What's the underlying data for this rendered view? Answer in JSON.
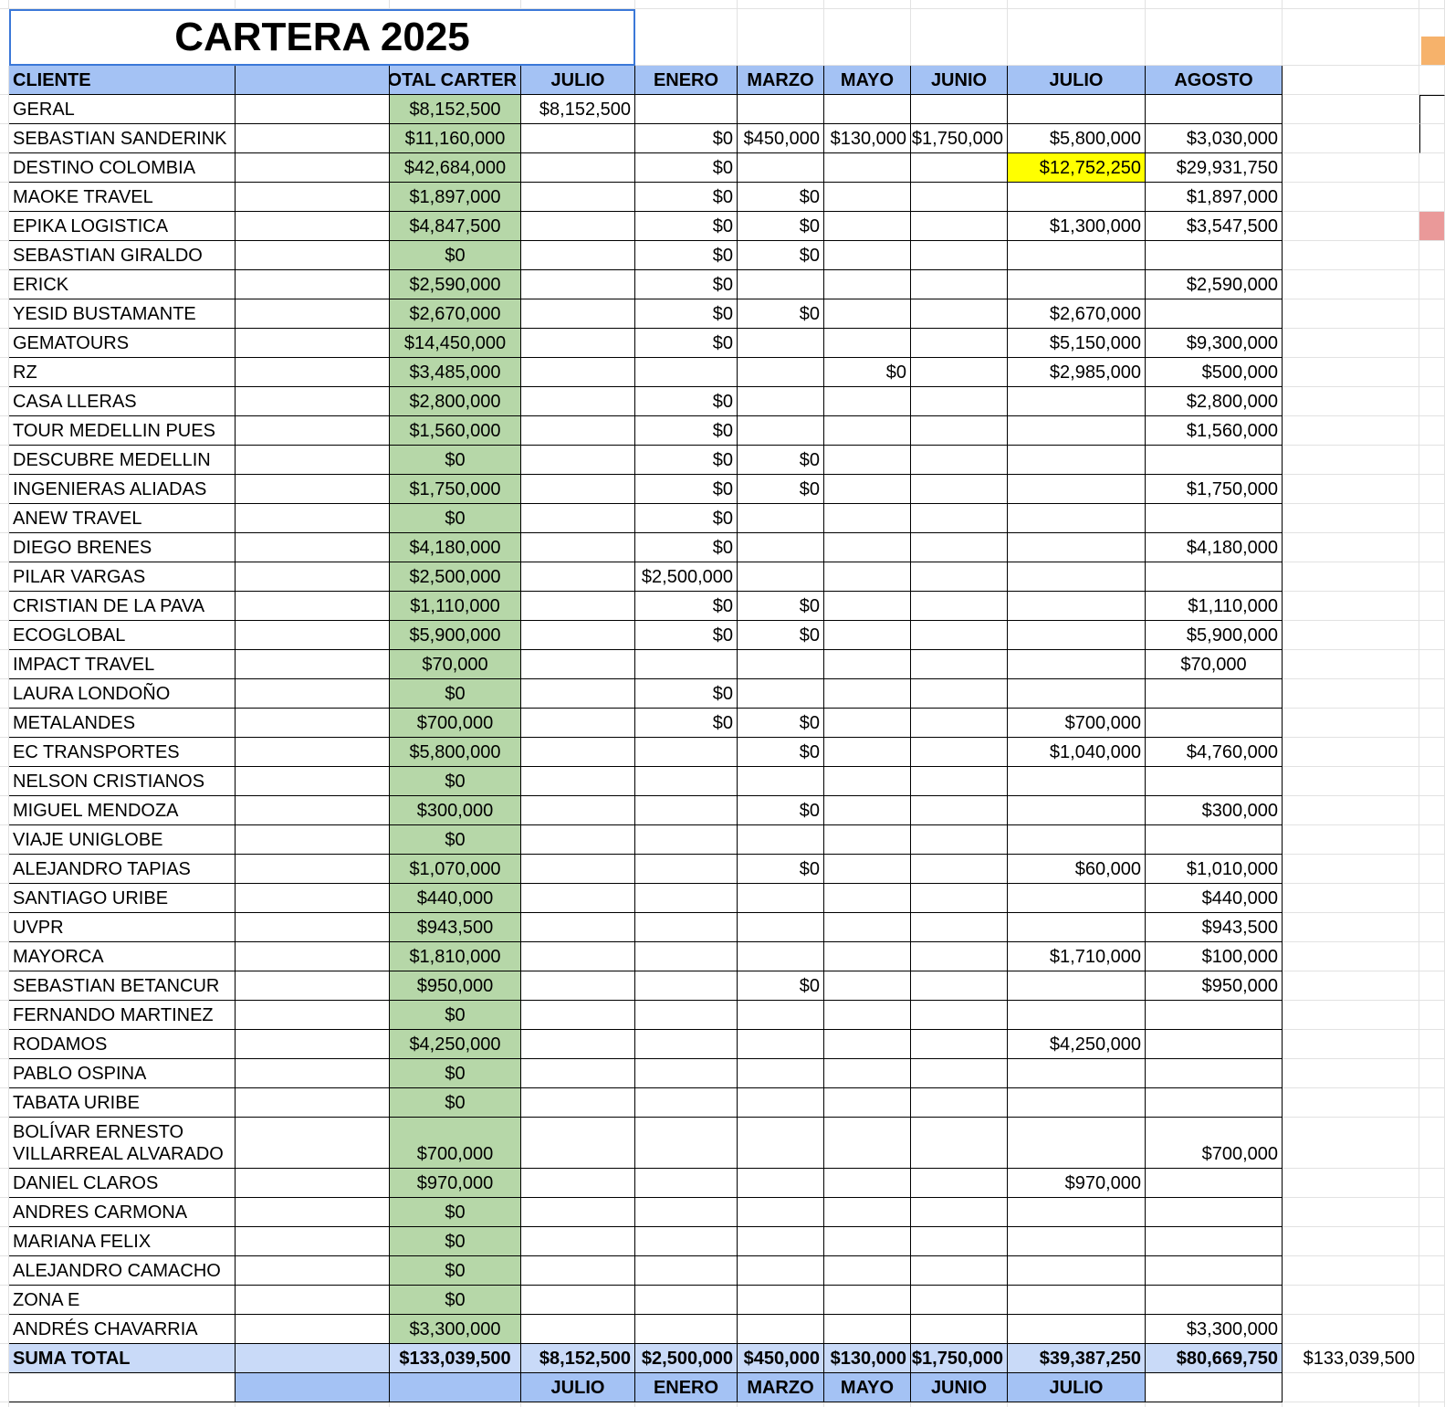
{
  "title": "CARTERA 2025",
  "header": [
    "CLIENTE",
    "TOTAL CARTER",
    "JULIO",
    "ENERO",
    "MARZO",
    "MAYO",
    "JUNIO",
    "JULIO",
    "AGOSTO"
  ],
  "rows": [
    [
      "GERAL",
      "$8,152,500",
      "$8,152,500",
      null,
      null,
      null,
      null,
      null,
      null
    ],
    [
      "SEBASTIAN SANDERINK",
      "$11,160,000",
      null,
      "$0",
      "$450,000",
      "$130,000",
      "$1,750,000",
      "$5,800,000",
      "$3,030,000"
    ],
    [
      "DESTINO COLOMBIA",
      "$42,684,000",
      null,
      "$0",
      null,
      null,
      null,
      "$12,752,250",
      "$29,931,750"
    ],
    [
      "MAOKE TRAVEL",
      "$1,897,000",
      null,
      "$0",
      "$0",
      null,
      null,
      null,
      "$1,897,000"
    ],
    [
      "EPIKA LOGISTICA",
      "$4,847,500",
      null,
      "$0",
      "$0",
      null,
      null,
      "$1,300,000",
      "$3,547,500"
    ],
    [
      "SEBASTIAN GIRALDO",
      "$0",
      null,
      "$0",
      "$0",
      null,
      null,
      null,
      null
    ],
    [
      "ERICK",
      "$2,590,000",
      null,
      "$0",
      null,
      null,
      null,
      null,
      "$2,590,000"
    ],
    [
      "YESID BUSTAMANTE",
      "$2,670,000",
      null,
      "$0",
      "$0",
      null,
      null,
      "$2,670,000",
      null
    ],
    [
      "GEMATOURS",
      "$14,450,000",
      null,
      "$0",
      null,
      null,
      null,
      "$5,150,000",
      "$9,300,000"
    ],
    [
      " RZ",
      "$3,485,000",
      null,
      null,
      null,
      "$0",
      null,
      "$2,985,000",
      "$500,000"
    ],
    [
      "CASA LLERAS",
      "$2,800,000",
      null,
      "$0",
      null,
      null,
      null,
      null,
      "$2,800,000"
    ],
    [
      "TOUR MEDELLIN PUES",
      "$1,560,000",
      null,
      "$0",
      null,
      null,
      null,
      null,
      "$1,560,000"
    ],
    [
      "DESCUBRE MEDELLIN",
      "$0",
      null,
      "$0",
      "$0",
      null,
      null,
      null,
      null
    ],
    [
      "INGENIERAS ALIADAS",
      "$1,750,000",
      null,
      "$0",
      "$0",
      null,
      null,
      null,
      "$1,750,000"
    ],
    [
      "ANEW TRAVEL",
      "$0",
      null,
      "$0",
      null,
      null,
      null,
      null,
      null
    ],
    [
      "DIEGO BRENES",
      "$4,180,000",
      null,
      "$0",
      null,
      null,
      null,
      null,
      "$4,180,000"
    ],
    [
      "PILAR VARGAS",
      "$2,500,000",
      null,
      "$2,500,000",
      null,
      null,
      null,
      null,
      null
    ],
    [
      "CRISTIAN DE LA PAVA",
      "$1,110,000",
      null,
      "$0",
      "$0",
      null,
      null,
      null,
      "$1,110,000"
    ],
    [
      "ECOGLOBAL",
      "$5,900,000",
      null,
      "$0",
      "$0",
      null,
      null,
      null,
      "$5,900,000"
    ],
    [
      "IMPACT TRAVEL",
      "$70,000",
      null,
      null,
      null,
      null,
      null,
      null,
      "$70,000"
    ],
    [
      "LAURA LONDOÑO",
      "$0",
      null,
      "$0",
      null,
      null,
      null,
      null,
      null
    ],
    [
      "METALANDES",
      "$700,000",
      null,
      "$0",
      "$0",
      null,
      null,
      "$700,000",
      null
    ],
    [
      "EC TRANSPORTES",
      "$5,800,000",
      null,
      null,
      "$0",
      null,
      null,
      "$1,040,000",
      "$4,760,000"
    ],
    [
      "NELSON CRISTIANOS",
      "$0",
      null,
      null,
      null,
      null,
      null,
      null,
      null
    ],
    [
      "MIGUEL MENDOZA",
      "$300,000",
      null,
      null,
      "$0",
      null,
      null,
      null,
      "$300,000"
    ],
    [
      "VIAJE UNIGLOBE",
      "$0",
      null,
      null,
      null,
      null,
      null,
      null,
      null
    ],
    [
      "ALEJANDRO TAPIAS",
      "$1,070,000",
      null,
      null,
      "$0",
      null,
      null,
      "$60,000",
      "$1,010,000"
    ],
    [
      "SANTIAGO URIBE",
      "$440,000",
      null,
      null,
      null,
      null,
      null,
      null,
      "$440,000"
    ],
    [
      "UVPR",
      "$943,500",
      null,
      null,
      null,
      null,
      null,
      null,
      "$943,500"
    ],
    [
      "MAYORCA",
      "$1,810,000",
      null,
      null,
      null,
      null,
      null,
      "$1,710,000",
      "$100,000"
    ],
    [
      "SEBASTIAN BETANCUR",
      "$950,000",
      null,
      null,
      "$0",
      null,
      null,
      null,
      "$950,000"
    ],
    [
      "FERNANDO MARTINEZ",
      "$0",
      null,
      null,
      null,
      null,
      null,
      null,
      null
    ],
    [
      "RODAMOS",
      "$4,250,000",
      null,
      null,
      null,
      null,
      null,
      "$4,250,000",
      null
    ],
    [
      "PABLO OSPINA",
      "$0",
      null,
      null,
      null,
      null,
      null,
      null,
      null
    ],
    [
      "TABATA URIBE",
      "$0",
      null,
      null,
      null,
      null,
      null,
      null,
      null
    ],
    [
      "BOLÍVAR ERNESTO VILLARREAL ALVARADO",
      "$700,000",
      null,
      null,
      null,
      null,
      null,
      null,
      "$700,000"
    ],
    [
      "DANIEL CLAROS",
      "$970,000",
      null,
      null,
      null,
      null,
      null,
      "$970,000",
      null
    ],
    [
      "ANDRES CARMONA",
      "$0",
      null,
      null,
      null,
      null,
      null,
      null,
      null
    ],
    [
      "MARIANA FELIX",
      "$0",
      null,
      null,
      null,
      null,
      null,
      null,
      null
    ],
    [
      "ALEJANDRO CAMACHO",
      "$0",
      null,
      null,
      null,
      null,
      null,
      null,
      null
    ],
    [
      "ZONA E",
      "$0",
      null,
      null,
      null,
      null,
      null,
      null,
      null
    ],
    [
      "ANDRÉS CHAVARRIA",
      "$3,300,000",
      null,
      null,
      null,
      null,
      null,
      null,
      "$3,300,000"
    ]
  ],
  "total": {
    "label": "SUMA TOTAL",
    "values": [
      "$133,039,500",
      "$8,152,500",
      "$2,500,000",
      "$450,000",
      "$130,000",
      "$1,750,000",
      "$39,387,250",
      "$80,669,750"
    ],
    "grand": "$133,039,500"
  },
  "footer": [
    "JULIO",
    "ENERO",
    "MARZO",
    "MAYO",
    "JUNIO",
    "JULIO"
  ]
}
